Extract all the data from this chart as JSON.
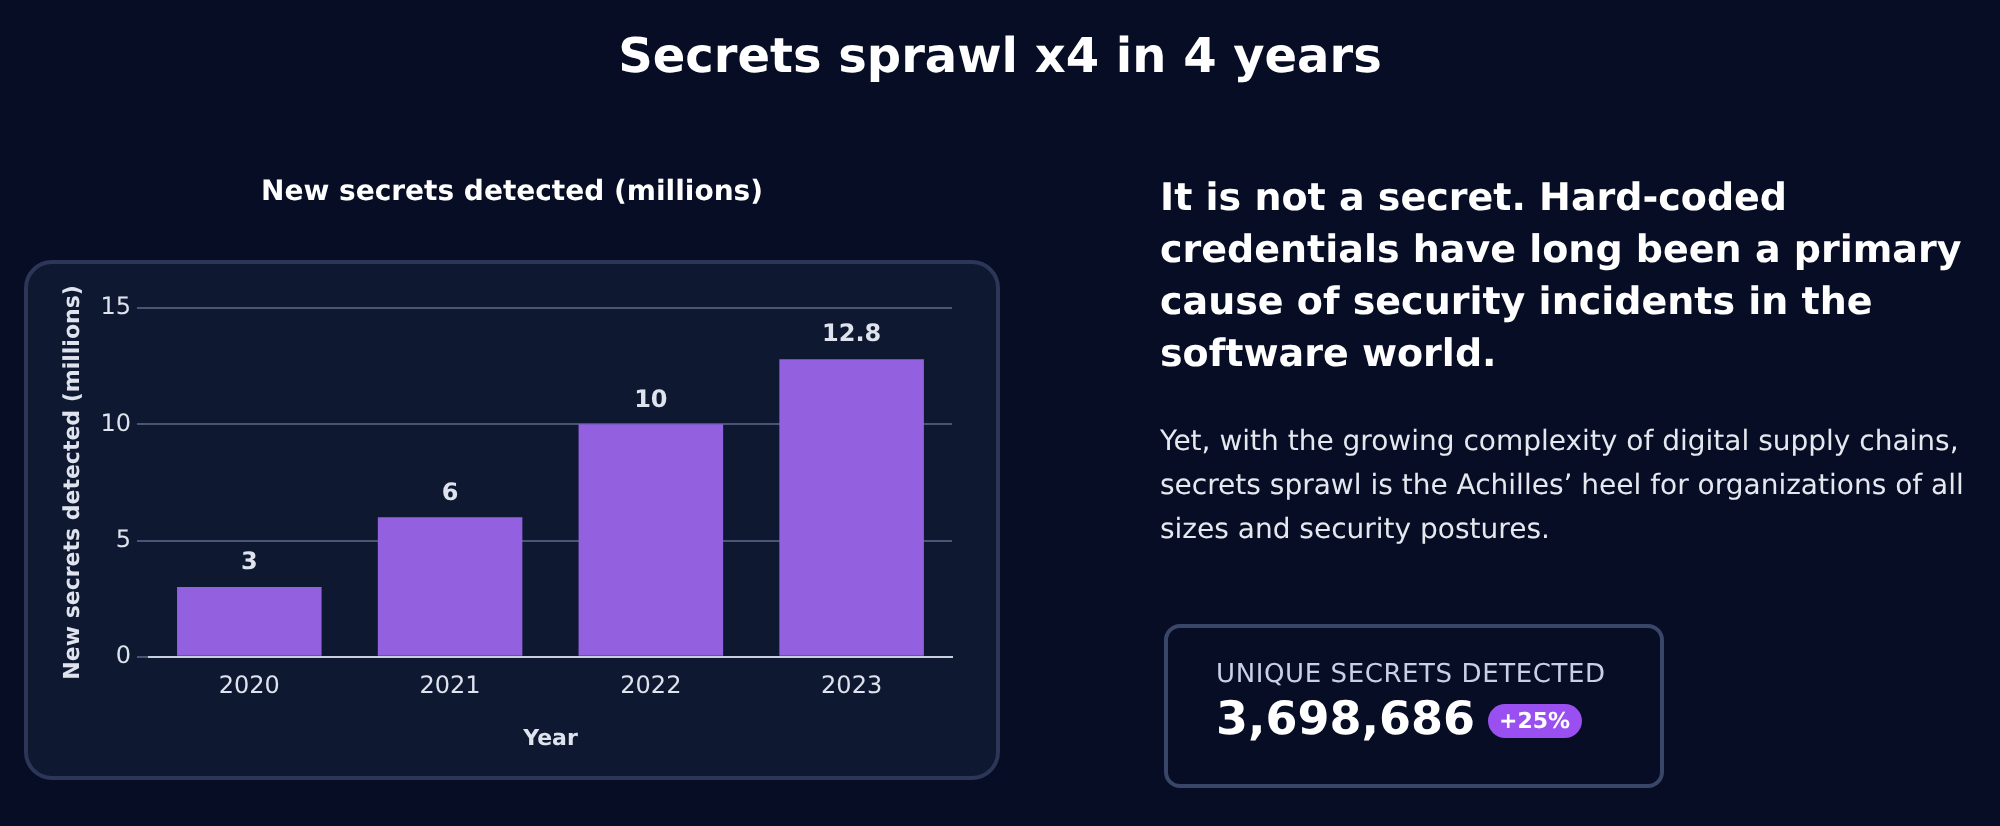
{
  "chart_data": [
    {
      "type": "bar",
      "title": "Secrets sprawl x4 in 4 years",
      "subtitle": "New secrets detected (millions)",
      "xlabel": "Year",
      "ylabel": "New secrets detected (millions)",
      "categories": [
        "2020",
        "2021",
        "2022",
        "2023"
      ],
      "values": [
        3,
        6,
        10,
        12.8
      ],
      "color": "#9361e0",
      "ylim": [
        0,
        15
      ],
      "yticks": [
        0,
        5,
        10,
        15
      ],
      "grid": "y",
      "legend": false,
      "data_labels": true
    },
    {
      "type": "other",
      "title": "It is not a secret. Hard-coded credentials have long been a primary cause of security incidents in the software world.",
      "subtitle": "Yet, with the growing complexity of digital supply chains, secrets sprawl is the Achilles’ heel for organizations of all sizes and security postures.",
      "annotations": [
        "UNIQUE SECRETS DETECTED",
        "3,698,686",
        "+25%"
      ]
    }
  ]
}
